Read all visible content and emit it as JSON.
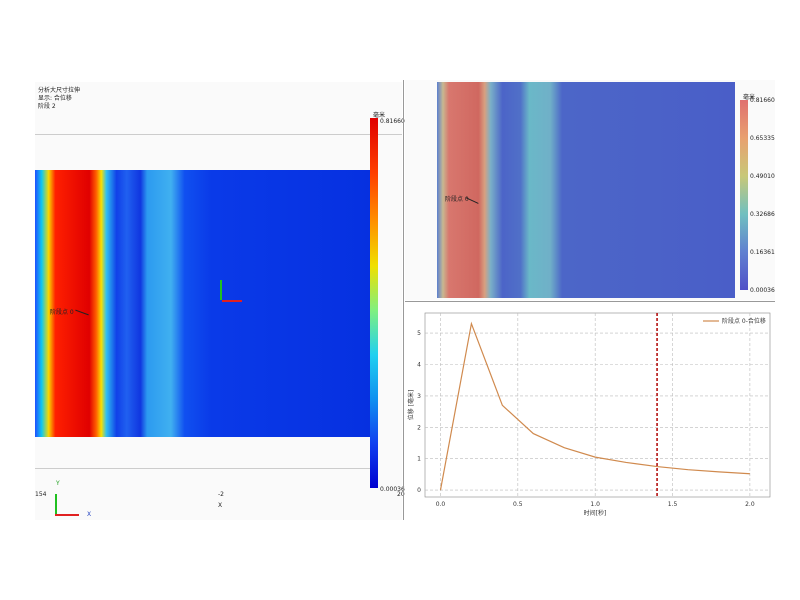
{
  "left_view": {
    "header": [
      "分析大尺寸拉伸",
      "显示: 合位移",
      "阶段 2"
    ],
    "unit": "毫米",
    "colorbar_max": "0.81660",
    "colorbar_min": "0.00036",
    "probe_label": "阶段点 0",
    "axis_labels": [
      "154",
      "-2",
      "X",
      "20"
    ],
    "triad": [
      "Y",
      "X"
    ]
  },
  "right_view": {
    "unit": "毫米",
    "colorbar_labels": [
      "0.81660",
      "0.65335",
      "0.49010",
      "0.32686",
      "0.16361",
      "0.00036"
    ],
    "probe_label": "阶段点 0"
  },
  "chart_data": {
    "type": "line",
    "xlabel": "时间[秒]",
    "ylabel": "位移 [毫米]",
    "x": [
      0,
      0.2,
      0.4,
      0.6,
      0.8,
      1.0,
      1.2,
      1.4,
      1.6,
      1.8,
      2.0
    ],
    "series": [
      {
        "name": "阶段点 0-合位移",
        "color": "#d08a4e",
        "values": [
          0,
          5.3,
          2.7,
          1.8,
          1.35,
          1.05,
          0.88,
          0.75,
          0.65,
          0.58,
          0.52
        ]
      }
    ],
    "xlim": [
      -0.1,
      2.13
    ],
    "ylim": [
      -0.22,
      5.64
    ],
    "xticks": [
      {
        "value": 0,
        "label": "0.0"
      },
      0.5,
      {
        "value": 1,
        "label": "1.0"
      },
      1.5,
      {
        "value": 2,
        "label": "2.0"
      }
    ],
    "yticks": [
      0,
      1,
      2,
      3,
      4,
      5
    ],
    "grid": true,
    "marker_x": 1.4,
    "marker_color": "#b00000"
  }
}
